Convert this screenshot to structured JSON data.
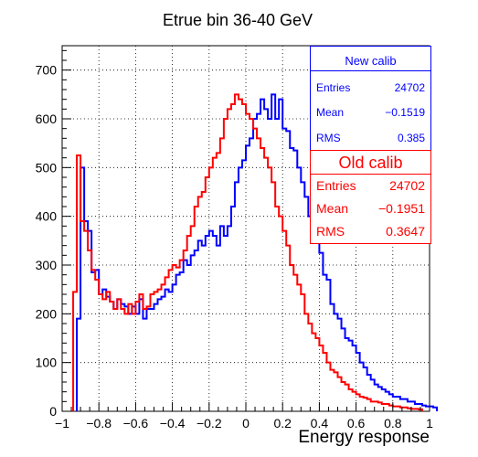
{
  "chart_data": {
    "type": "histogram",
    "title": "Etrue bin 36-40 GeV",
    "xlabel": "Energy response",
    "ylabel": "",
    "xlim": [
      -1,
      1
    ],
    "ylim": [
      0,
      750
    ],
    "grid": true,
    "bin_width": 0.02,
    "x_ticks": [
      -1,
      -0.8,
      -0.6,
      -0.4,
      -0.2,
      0,
      0.2,
      0.4,
      0.6,
      0.8,
      1
    ],
    "x_tick_labels": [
      "−1",
      "−0.8",
      "−0.6",
      "−0.4",
      "−0.2",
      "0",
      "0.2",
      "0.4",
      "0.6",
      "0.8",
      "1"
    ],
    "y_ticks": [
      0,
      100,
      200,
      300,
      400,
      500,
      600,
      700
    ],
    "y_tick_labels": [
      "0",
      "100",
      "200",
      "300",
      "400",
      "500",
      "600",
      "700"
    ],
    "series": [
      {
        "name": "New calib",
        "color": "#0000ff",
        "x_start": -0.92,
        "values": [
          190,
          500,
          390,
          370,
          285,
          290,
          240,
          250,
          235,
          225,
          210,
          230,
          220,
          215,
          200,
          215,
          200,
          230,
          190,
          210,
          210,
          220,
          230,
          235,
          250,
          245,
          260,
          280,
          285,
          310,
          300,
          320,
          330,
          350,
          340,
          360,
          370,
          360,
          340,
          380,
          360,
          380,
          420,
          470,
          500,
          515,
          545,
          560,
          600,
          610,
          640,
          620,
          600,
          650,
          600,
          640,
          580,
          575,
          540,
          535,
          500,
          470,
          440,
          400,
          370,
          345,
          325,
          280,
          270,
          220,
          200,
          190,
          170,
          150,
          145,
          135,
          120,
          100,
          90,
          75,
          65,
          55,
          50,
          45,
          40,
          35,
          30,
          30,
          25,
          25,
          20,
          20,
          15,
          15,
          12,
          10,
          10,
          8
        ]
      },
      {
        "name": "Old calib",
        "color": "#ff0000",
        "x_start": -0.94,
        "values": [
          245,
          525,
          390,
          370,
          330,
          290,
          270,
          240,
          230,
          245,
          225,
          210,
          230,
          210,
          200,
          220,
          200,
          225,
          240,
          210,
          215,
          240,
          245,
          250,
          260,
          275,
          290,
          300,
          295,
          310,
          330,
          360,
          380,
          420,
          440,
          450,
          480,
          500,
          520,
          530,
          560,
          600,
          620,
          630,
          650,
          640,
          630,
          610,
          600,
          580,
          560,
          540,
          520,
          500,
          470,
          420,
          400,
          370,
          340,
          300,
          280,
          260,
          240,
          200,
          180,
          160,
          150,
          135,
          120,
          100,
          85,
          80,
          70,
          60,
          55,
          45,
          40,
          35,
          30,
          28,
          25,
          20,
          20,
          18,
          15,
          15,
          12,
          10,
          10,
          8,
          8,
          6,
          5,
          5,
          4
        ]
      }
    ],
    "legend": [
      {
        "title": "New calib",
        "color": "#0000ff",
        "rows": [
          {
            "key": "Entries",
            "value": "24702"
          },
          {
            "key": "Mean",
            "value": "−0.1519"
          },
          {
            "key": "RMS",
            "value": "0.385"
          }
        ]
      },
      {
        "title": "Old calib",
        "color": "#ff0000",
        "rows": [
          {
            "key": "Entries",
            "value": "24702"
          },
          {
            "key": "Mean",
            "value": "−0.1951"
          },
          {
            "key": "RMS",
            "value": "0.3647"
          }
        ]
      }
    ],
    "legend_placement": "top-right"
  }
}
